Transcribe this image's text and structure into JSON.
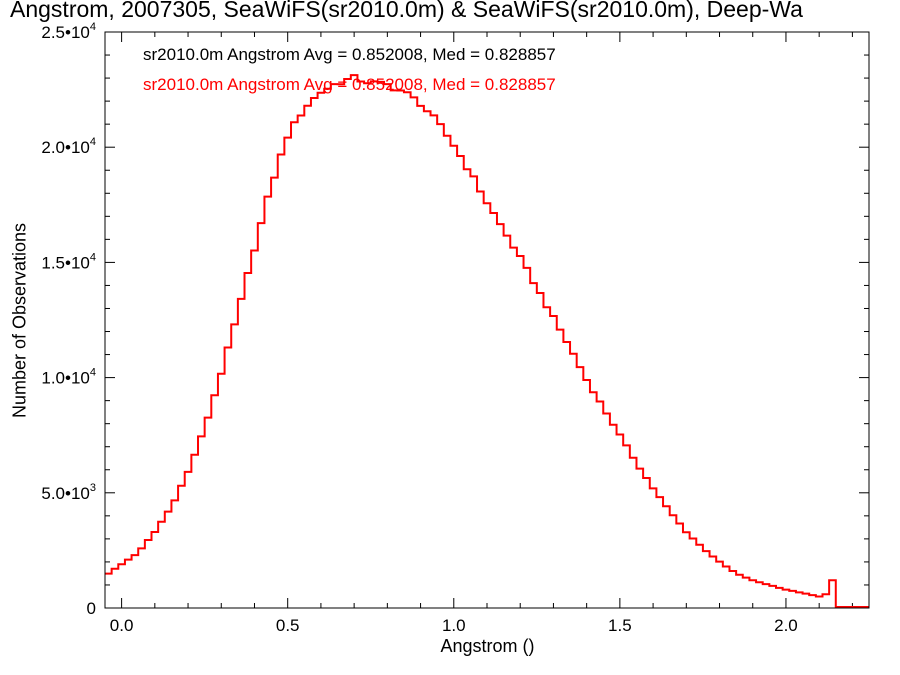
{
  "title": "Angstrom, 2007305, SeaWiFS(sr2010.0m) & SeaWiFS(sr2010.0m), Deep-Wa",
  "annotations": [
    {
      "text": "sr2010.0m Angstrom Avg = 0.852008, Med = 0.828857",
      "color": "#000000"
    },
    {
      "text": "sr2010.0m Angstrom Avg = 0.852008, Med = 0.828857",
      "color": "#ff0000"
    }
  ],
  "chart_data": {
    "type": "line",
    "xlabel": "Angstrom ()",
    "ylabel": "Number of Observations",
    "xlim": [
      -0.05,
      2.25
    ],
    "ylim": [
      0,
      25000
    ],
    "x_ticks": [
      {
        "value": 0.0,
        "label": "0.0"
      },
      {
        "value": 0.5,
        "label": "0.5"
      },
      {
        "value": 1.0,
        "label": "1.0"
      },
      {
        "value": 1.5,
        "label": "1.5"
      },
      {
        "value": 2.0,
        "label": "2.0"
      }
    ],
    "y_ticks": [
      {
        "value": 0,
        "mant": "0",
        "exp": ""
      },
      {
        "value": 5000,
        "mant": "5.0•10",
        "exp": "3"
      },
      {
        "value": 10000,
        "mant": "1.0•10",
        "exp": "4"
      },
      {
        "value": 15000,
        "mant": "1.5•10",
        "exp": "4"
      },
      {
        "value": 20000,
        "mant": "2.0•10",
        "exp": "4"
      },
      {
        "value": 25000,
        "mant": "2.5•10",
        "exp": "4"
      }
    ],
    "bin_width": 0.02,
    "series": [
      {
        "color": "#ff0000",
        "x": [
          -0.05,
          0.0,
          0.05,
          0.1,
          0.15,
          0.2,
          0.25,
          0.3,
          0.35,
          0.4,
          0.45,
          0.5,
          0.55,
          0.6,
          0.65,
          0.7,
          0.75,
          0.8,
          0.85,
          0.9,
          0.95,
          1.0,
          1.05,
          1.1,
          1.15,
          1.2,
          1.25,
          1.3,
          1.35,
          1.4,
          1.45,
          1.5,
          1.55,
          1.6,
          1.65,
          1.7,
          1.75,
          1.8,
          1.85,
          1.9,
          1.95,
          2.0,
          2.05,
          2.1,
          2.12,
          2.13,
          2.14,
          2.15,
          2.25
        ],
        "values": [
          1400,
          1900,
          2400,
          3300,
          4400,
          5900,
          7800,
          10200,
          12800,
          15600,
          18300,
          20500,
          21700,
          22400,
          22800,
          23000,
          22800,
          22700,
          22400,
          21900,
          21100,
          20100,
          18900,
          17600,
          16400,
          15200,
          13900,
          12600,
          11300,
          9900,
          8700,
          7500,
          6300,
          5200,
          4200,
          3300,
          2600,
          2000,
          1500,
          1200,
          1000,
          800,
          650,
          500,
          600,
          400,
          1200,
          0,
          0
        ]
      }
    ]
  }
}
